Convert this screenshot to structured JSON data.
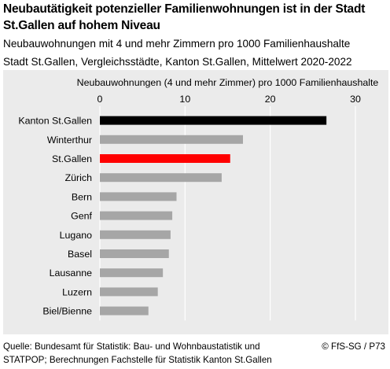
{
  "header": {
    "title": "Neubautätigkeit potenzieller Familienwohnungen ist in der Stadt St.Gallen auf hohem Niveau",
    "subtitle_line1": "Neubauwohnungen mit 4 und mehr Zimmern pro 1000 Familienhaushalte",
    "subtitle_line2": "Stadt St.Gallen, Vergleichsstädte, Kanton St.Gallen, Mittelwert 2020-2022"
  },
  "footer": {
    "source_line1": "Quelle: Bundesamt für Statistik: Bau- und Wohnbaustatistik und",
    "source_line2": "STATPOP; Berechnungen Fachstelle für Statistik Kanton St.Gallen",
    "copyright": "© FfS-SG / P73"
  },
  "chart_data": {
    "type": "bar",
    "orientation": "horizontal",
    "xlabel": "Neubauwohnungen (4 und mehr Zimmer) pro 1000 Familienhaushalte",
    "xlim": [
      0,
      30
    ],
    "xticks": [
      0,
      10,
      20,
      30
    ],
    "grid": true,
    "categories": [
      "Kanton St.Gallen",
      "Winterthur",
      "St.Gallen",
      "Zürich",
      "Bern",
      "Genf",
      "Lugano",
      "Basel",
      "Lausanne",
      "Luzern",
      "Biel/Bienne"
    ],
    "values": [
      26.6,
      16.8,
      15.3,
      14.3,
      9.0,
      8.5,
      8.3,
      8.1,
      7.4,
      6.8,
      5.7
    ],
    "colors": [
      "#000000",
      "#a6a6a6",
      "#ff0000",
      "#a6a6a6",
      "#a6a6a6",
      "#a6a6a6",
      "#a6a6a6",
      "#a6a6a6",
      "#a6a6a6",
      "#a6a6a6",
      "#a6a6a6"
    ]
  }
}
